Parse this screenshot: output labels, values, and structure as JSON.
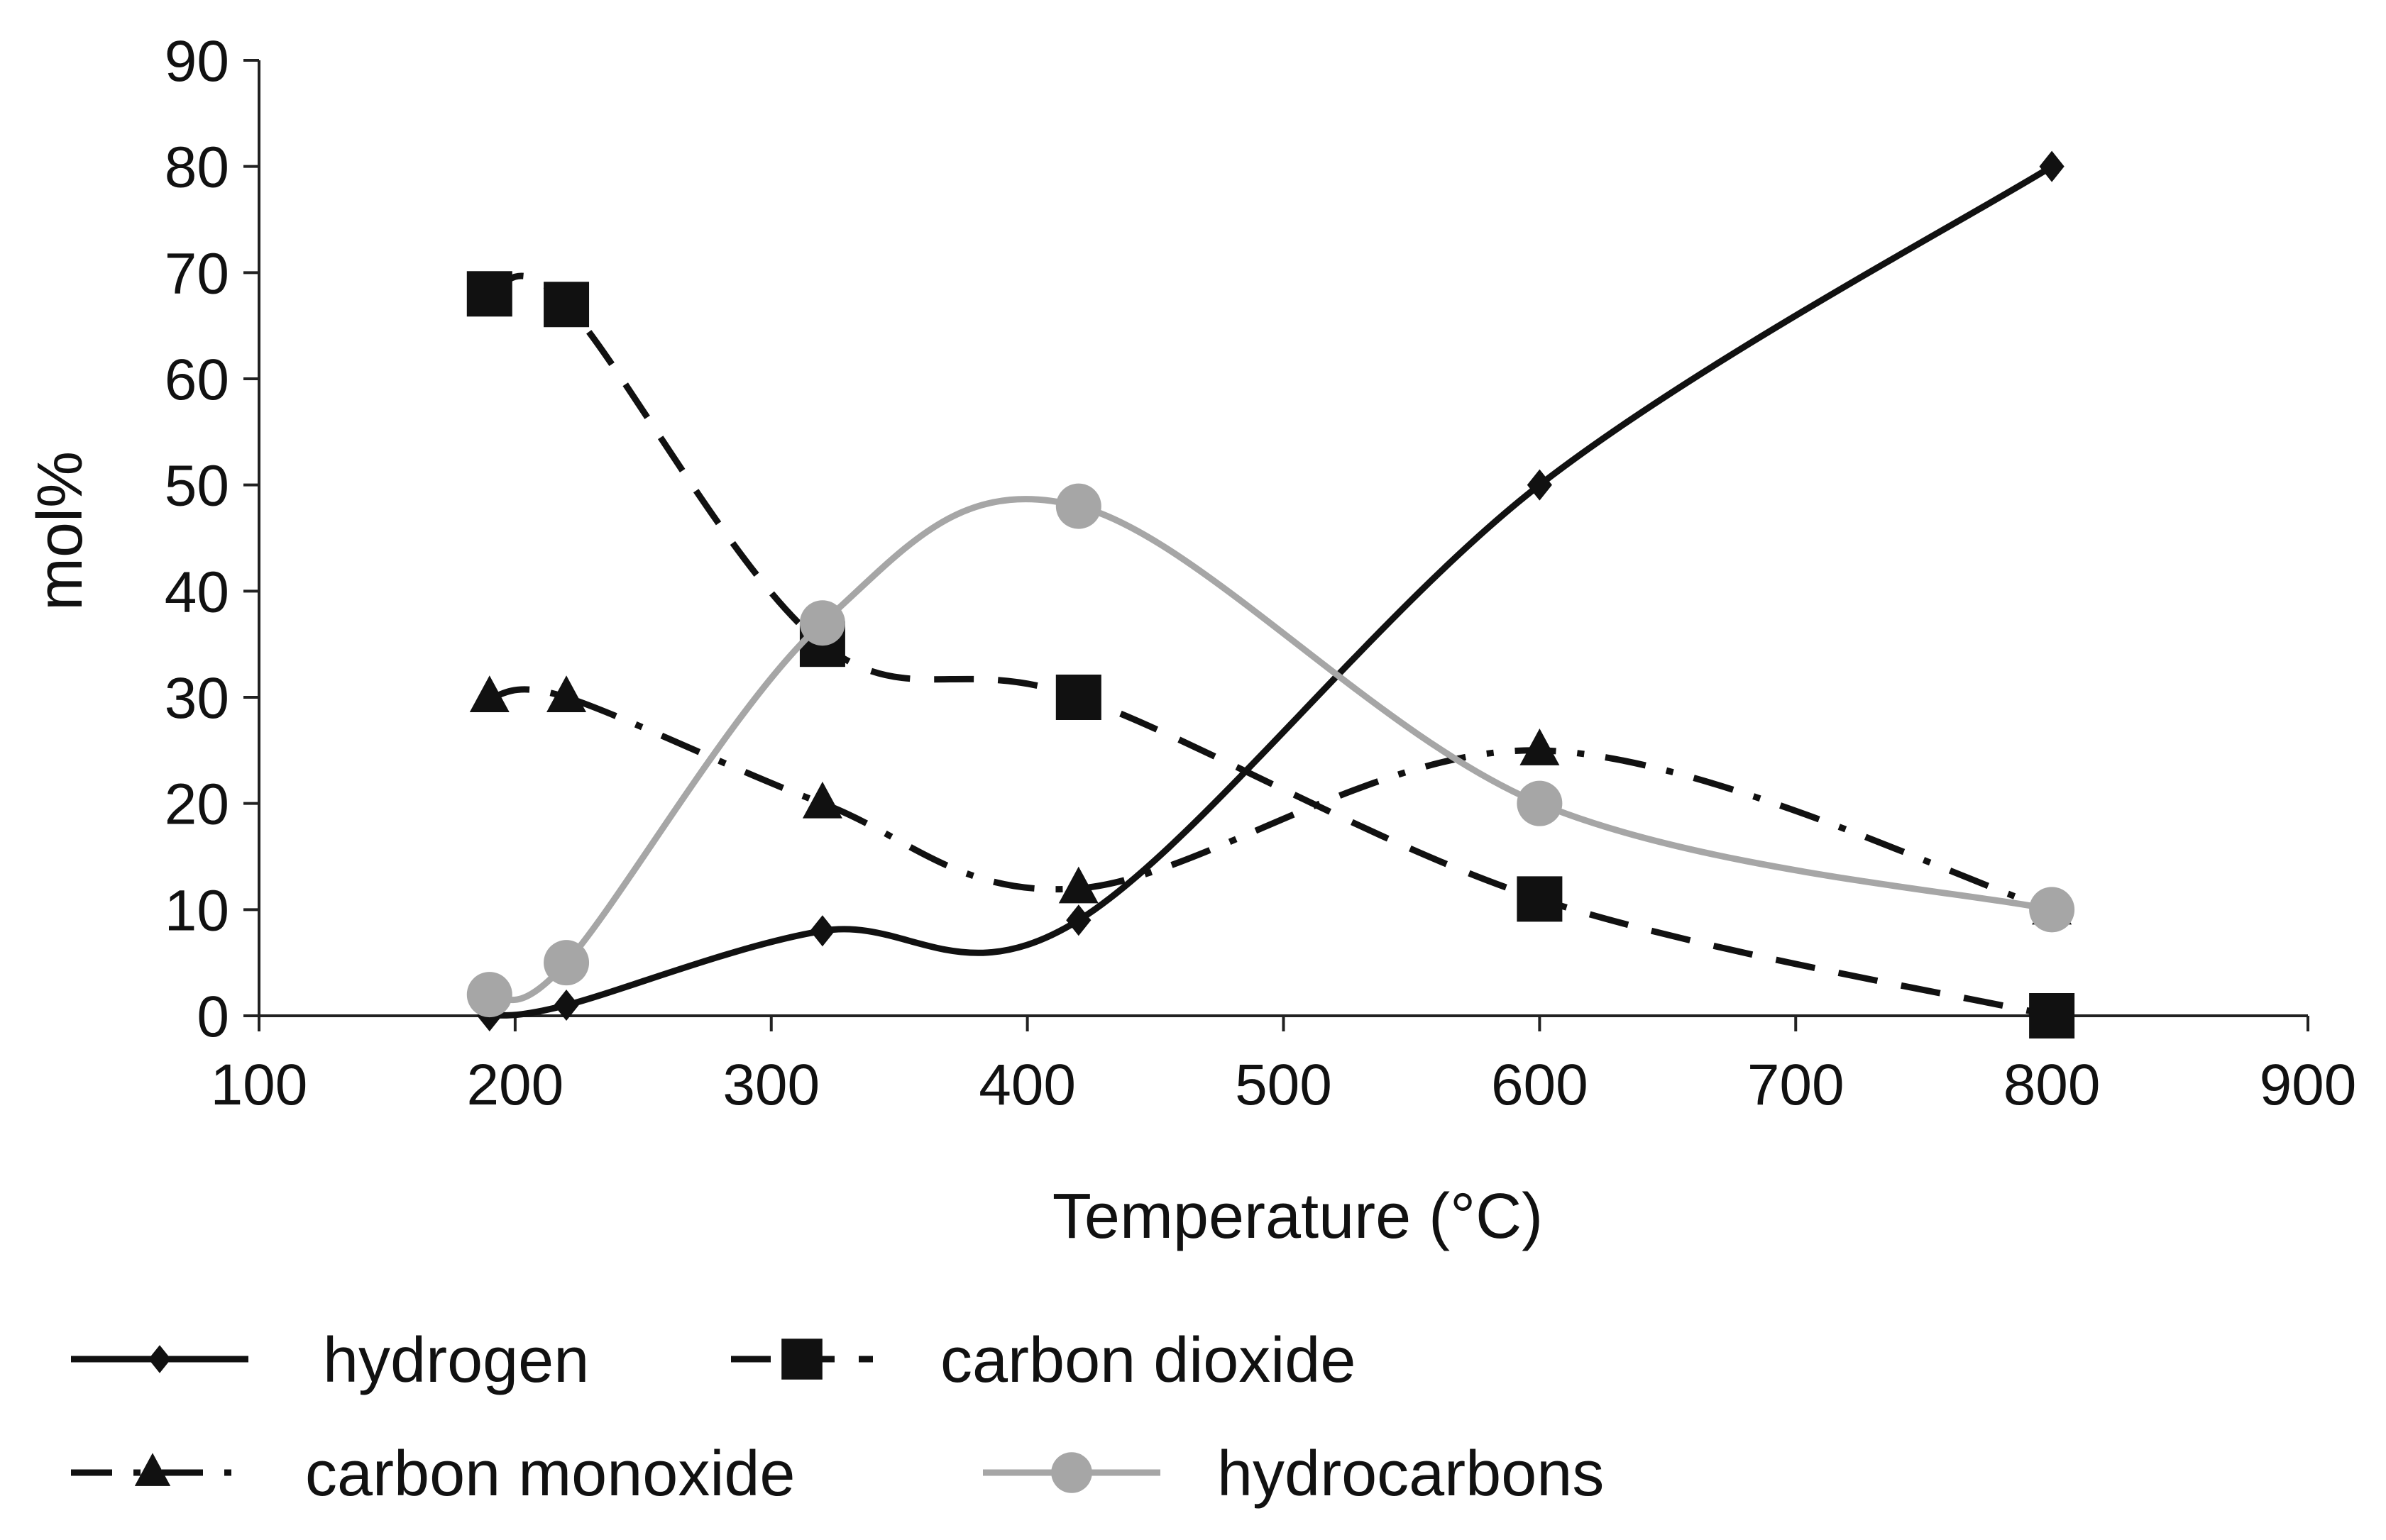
{
  "chart_data": {
    "type": "line",
    "title": "",
    "xlabel": "Temperature (°C)",
    "ylabel": "mol%",
    "xlim": [
      100,
      900
    ],
    "ylim": [
      0,
      90
    ],
    "x_ticks": [
      100,
      200,
      300,
      400,
      500,
      600,
      700,
      800,
      900
    ],
    "y_ticks": [
      0,
      10,
      20,
      30,
      40,
      50,
      60,
      70,
      80,
      90
    ],
    "grid": false,
    "legend_position": "bottom",
    "series": [
      {
        "name": "hydrogen",
        "color": "#111111",
        "line_style": "solid",
        "marker": "diamond",
        "x": [
          190,
          220,
          320,
          420,
          600,
          800
        ],
        "y": [
          0,
          1,
          8,
          9,
          50,
          80
        ]
      },
      {
        "name": "carbon dioxide",
        "color": "#111111",
        "line_style": "dashed",
        "marker": "square",
        "x": [
          190,
          220,
          320,
          420,
          600,
          800
        ],
        "y": [
          68,
          67,
          35,
          30,
          11,
          0
        ]
      },
      {
        "name": "carbon monoxide",
        "color": "#111111",
        "line_style": "dash-dot",
        "marker": "triangle",
        "x": [
          190,
          220,
          320,
          420,
          600,
          800
        ],
        "y": [
          30,
          30,
          20,
          12,
          25,
          10
        ]
      },
      {
        "name": "hydrocarbons",
        "color": "#a6a6a6",
        "line_style": "solid",
        "marker": "circle",
        "x": [
          190,
          220,
          320,
          420,
          600,
          800
        ],
        "y": [
          2,
          5,
          37,
          48,
          20,
          10
        ]
      }
    ]
  }
}
